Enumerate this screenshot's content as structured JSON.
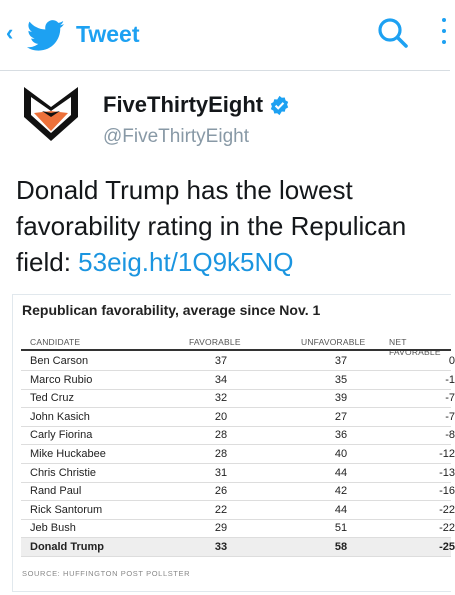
{
  "nav": {
    "back_glyph": "‹",
    "bird_icon": "twitter-bird-icon",
    "title": "Tweet",
    "search_icon": "search-icon",
    "more_icon": "more-vertical-icon",
    "accent_color": "#1da1f2"
  },
  "author": {
    "avatar_icon": "fox-logo-icon",
    "display_name": "FiveThirtyEight",
    "verified_icon": "verified-badge-icon",
    "handle": "@FiveThirtyEight"
  },
  "tweet": {
    "text": "Donald Trump has the lowest favorability rating in the Repulican field: ",
    "link": "53eig.ht/1Q9k5NQ"
  },
  "table": {
    "title": "Republican favorability, average since Nov. 1",
    "headers": {
      "candidate": "CANDIDATE",
      "favorable": "FAVORABLE",
      "unfavorable": "UNFAVORABLE",
      "net": "NET FAVORABLE"
    },
    "rows": [
      {
        "candidate": "Ben Carson",
        "favorable": "37",
        "unfavorable": "37",
        "net": "0"
      },
      {
        "candidate": "Marco Rubio",
        "favorable": "34",
        "unfavorable": "35",
        "net": "-1"
      },
      {
        "candidate": "Ted Cruz",
        "favorable": "32",
        "unfavorable": "39",
        "net": "-7"
      },
      {
        "candidate": "John Kasich",
        "favorable": "20",
        "unfavorable": "27",
        "net": "-7"
      },
      {
        "candidate": "Carly Fiorina",
        "favorable": "28",
        "unfavorable": "36",
        "net": "-8"
      },
      {
        "candidate": "Mike Huckabee",
        "favorable": "28",
        "unfavorable": "40",
        "net": "-12"
      },
      {
        "candidate": "Chris Christie",
        "favorable": "31",
        "unfavorable": "44",
        "net": "-13"
      },
      {
        "candidate": "Rand Paul",
        "favorable": "26",
        "unfavorable": "42",
        "net": "-16"
      },
      {
        "candidate": "Rick Santorum",
        "favorable": "22",
        "unfavorable": "44",
        "net": "-22"
      },
      {
        "candidate": "Jeb Bush",
        "favorable": "29",
        "unfavorable": "51",
        "net": "-22"
      },
      {
        "candidate": "Donald Trump",
        "favorable": "33",
        "unfavorable": "58",
        "net": "-25",
        "highlight": true
      }
    ],
    "source": "SOURCE: HUFFINGTON POST POLLSTER"
  }
}
